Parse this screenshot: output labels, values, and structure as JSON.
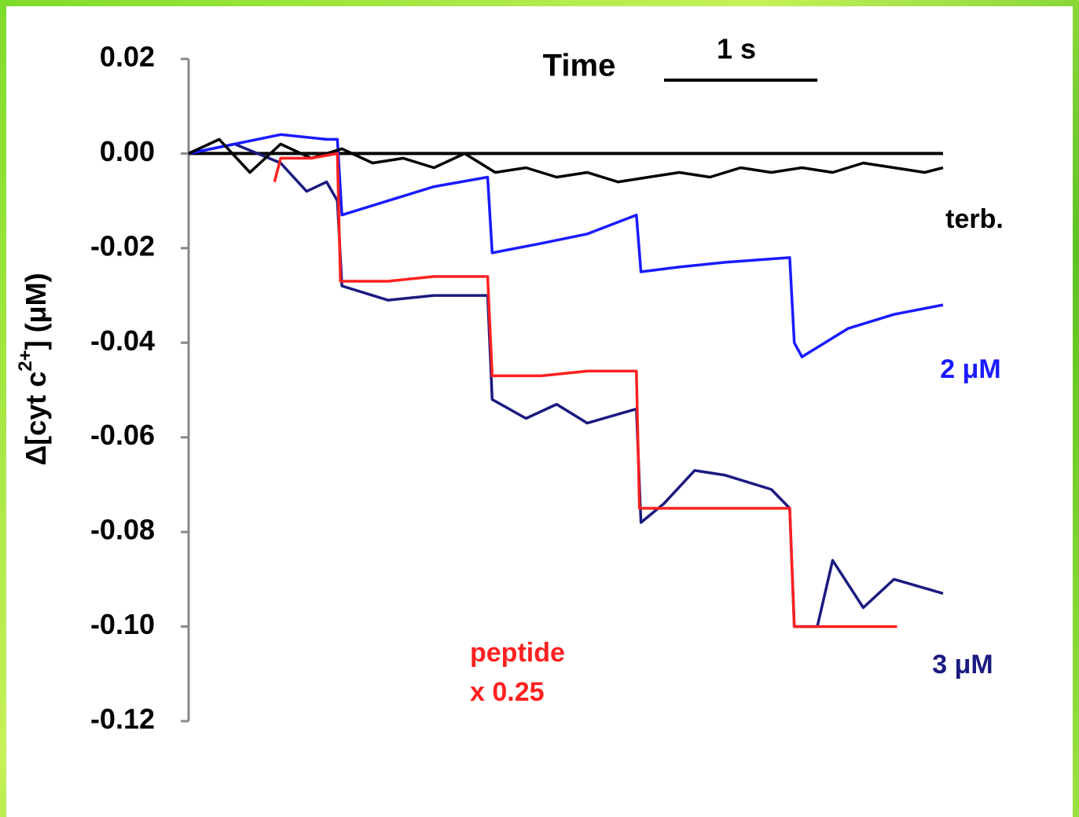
{
  "chart_data": {
    "type": "line",
    "x_label": "Time",
    "y_label_parts": [
      "Δ[cyt c",
      "2+",
      "] (μM)"
    ],
    "scale_bar": {
      "label": "1 s",
      "value": 1
    },
    "annotation": "x 0.25",
    "reference_line": 0,
    "xlim": [
      0,
      4.92
    ],
    "ylim": [
      -0.12,
      0.02
    ],
    "yticks": [
      0.02,
      {
        "value": 0,
        "label": "0.00"
      },
      -0.02,
      -0.04,
      -0.06,
      -0.08,
      {
        "value": -0.1,
        "label": "-0.10"
      },
      -0.12
    ],
    "series": [
      {
        "name": "terb.",
        "color": "#000000",
        "x": [
          0,
          0.2,
          0.4,
          0.6,
          0.8,
          1.0,
          1.2,
          1.4,
          1.6,
          1.8,
          2.0,
          2.2,
          2.4,
          2.6,
          2.8,
          3.0,
          3.2,
          3.4,
          3.6,
          3.8,
          4.0,
          4.2,
          4.4,
          4.6,
          4.8,
          4.92
        ],
        "values": [
          0,
          0.003,
          -0.004,
          0.002,
          -0.001,
          0.001,
          -0.002,
          -0.001,
          -0.003,
          0,
          -0.004,
          -0.003,
          -0.005,
          -0.004,
          -0.006,
          -0.005,
          -0.004,
          -0.005,
          -0.003,
          -0.004,
          -0.003,
          -0.004,
          -0.002,
          -0.003,
          -0.004,
          -0.003
        ]
      },
      {
        "name": "2 μM",
        "color": "#1a1aff",
        "x": [
          0,
          0.3,
          0.6,
          0.9,
          0.97,
          1.0,
          1.3,
          1.6,
          1.95,
          1.98,
          2.3,
          2.6,
          2.92,
          2.95,
          3.2,
          3.5,
          3.92,
          3.95,
          4.0,
          4.3,
          4.6,
          4.92
        ],
        "values": [
          0,
          0.002,
          0.004,
          0.003,
          0.003,
          -0.013,
          -0.01,
          -0.007,
          -0.005,
          -0.021,
          -0.019,
          -0.017,
          -0.013,
          -0.025,
          -0.024,
          -0.023,
          -0.022,
          -0.04,
          -0.043,
          -0.037,
          -0.034,
          -0.032
        ]
      },
      {
        "name": "3 μM",
        "color": "#1a1a80",
        "x": [
          0,
          0.3,
          0.6,
          0.77,
          0.9,
          0.97,
          1.0,
          1.3,
          1.6,
          1.95,
          1.98,
          2.2,
          2.4,
          2.6,
          2.92,
          2.95,
          3.1,
          3.3,
          3.5,
          3.8,
          3.92,
          3.95,
          4.1,
          4.2,
          4.4,
          4.6,
          4.92
        ],
        "values": [
          0,
          0.002,
          -0.002,
          -0.008,
          -0.006,
          -0.01,
          -0.028,
          -0.031,
          -0.03,
          -0.03,
          -0.052,
          -0.056,
          -0.053,
          -0.057,
          -0.054,
          -0.078,
          -0.074,
          -0.067,
          -0.068,
          -0.071,
          -0.075,
          -0.1,
          -0.1,
          -0.086,
          -0.096,
          -0.09,
          -0.093
        ]
      },
      {
        "name": "peptide",
        "color": "#ff2020",
        "x": [
          0.56,
          0.6,
          0.8,
          0.97,
          0.99,
          1.3,
          1.6,
          1.95,
          1.98,
          2.3,
          2.6,
          2.92,
          2.94,
          3.3,
          3.6,
          3.92,
          3.95,
          4.3,
          4.62
        ],
        "values": [
          -0.006,
          -0.001,
          -0.001,
          0,
          -0.027,
          -0.027,
          -0.026,
          -0.026,
          -0.047,
          -0.047,
          -0.046,
          -0.046,
          -0.075,
          -0.075,
          -0.075,
          -0.075,
          -0.1,
          -0.1,
          -0.1
        ]
      }
    ]
  }
}
